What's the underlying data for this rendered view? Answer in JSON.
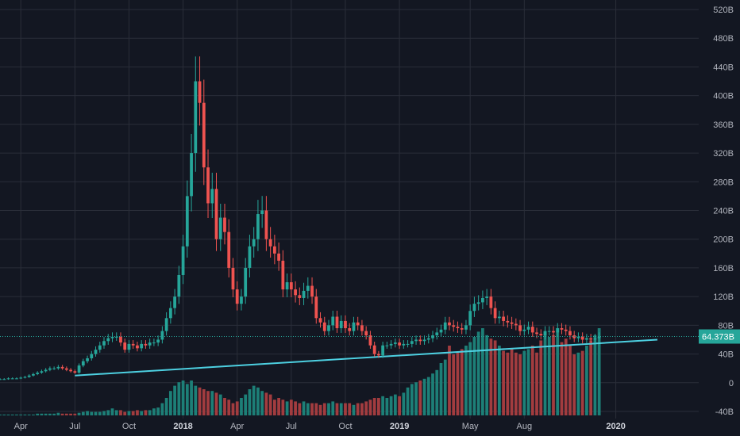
{
  "chart_data": {
    "type": "candlestick",
    "title": "",
    "xlabel": "",
    "ylabel": "",
    "y_unit": "B",
    "ylim": [
      -40,
      520
    ],
    "y_ticks": [
      "520B",
      "480B",
      "440B",
      "400B",
      "360B",
      "320B",
      "280B",
      "240B",
      "200B",
      "160B",
      "120B",
      "80B",
      "40B",
      "0",
      "-40B"
    ],
    "y_tick_values": [
      520,
      480,
      440,
      400,
      360,
      320,
      280,
      240,
      200,
      160,
      120,
      80,
      40,
      0,
      -40
    ],
    "x_ticks": [
      {
        "label": "Apr",
        "week": 5,
        "bold": false
      },
      {
        "label": "Jul",
        "week": 18,
        "bold": false
      },
      {
        "label": "Oct",
        "week": 31,
        "bold": false
      },
      {
        "label": "2018",
        "week": 44,
        "bold": true
      },
      {
        "label": "Apr",
        "week": 57,
        "bold": false
      },
      {
        "label": "Jul",
        "week": 70,
        "bold": false
      },
      {
        "label": "Oct",
        "week": 83,
        "bold": false
      },
      {
        "label": "2019",
        "week": 96,
        "bold": true
      },
      {
        "label": "May",
        "week": 113,
        "bold": false
      },
      {
        "label": "Aug",
        "week": 126,
        "bold": false
      },
      {
        "label": "2020",
        "week": 148,
        "bold": true
      }
    ],
    "x_range_weeks": [
      0,
      158
    ],
    "current_value": 64.373,
    "current_value_label": "64.373B",
    "grid": true,
    "trendline": {
      "start_week": 18,
      "start_value": 10,
      "end_week": 158,
      "end_value": 60
    },
    "colors": {
      "background": "#131722",
      "up": "#26a69a",
      "down": "#ef5350",
      "trendline": "#4dd0e1",
      "price_line": "#26a69a",
      "volume_up": "#1d7f77",
      "volume_down": "#a23c3f"
    },
    "close_series": [
      5,
      5,
      6,
      6,
      6,
      7,
      8,
      10,
      12,
      14,
      16,
      18,
      20,
      20,
      22,
      20,
      18,
      16,
      14,
      24,
      30,
      34,
      40,
      46,
      52,
      58,
      62,
      64,
      64,
      56,
      46,
      54,
      52,
      48,
      54,
      52,
      56,
      56,
      60,
      72,
      90,
      104,
      120,
      150,
      190,
      260,
      320,
      420,
      390,
      300,
      250,
      270,
      200,
      230,
      210,
      160,
      130,
      110,
      120,
      160,
      190,
      200,
      235,
      240,
      200,
      190,
      180,
      170,
      130,
      140,
      130,
      122,
      118,
      128,
      135,
      120,
      90,
      84,
      72,
      80,
      92,
      76,
      86,
      76,
      72,
      84,
      80,
      72,
      66,
      52,
      40,
      38,
      52,
      52,
      54,
      56,
      52,
      54,
      54,
      58,
      60,
      58,
      60,
      62,
      66,
      70,
      74,
      84,
      80,
      78,
      76,
      74,
      80,
      100,
      110,
      112,
      118,
      120,
      104,
      90,
      92,
      86,
      84,
      82,
      80,
      72,
      74,
      78,
      70,
      68,
      66,
      72,
      72,
      70,
      76,
      74,
      72,
      66,
      62,
      64,
      60,
      62,
      60,
      62,
      64
    ],
    "volume_series": [
      1,
      1,
      1,
      1,
      1,
      1,
      1,
      1,
      1,
      2,
      2,
      2,
      2,
      2,
      3,
      2,
      2,
      2,
      2,
      3,
      4,
      5,
      4,
      4,
      4,
      5,
      6,
      8,
      6,
      6,
      4,
      5,
      5,
      6,
      5,
      6,
      6,
      8,
      9,
      14,
      20,
      28,
      34,
      38,
      40,
      36,
      40,
      34,
      32,
      30,
      28,
      28,
      26,
      24,
      20,
      18,
      14,
      16,
      20,
      24,
      30,
      34,
      32,
      28,
      26,
      24,
      18,
      20,
      18,
      16,
      18,
      16,
      14,
      16,
      14,
      14,
      14,
      12,
      14,
      14,
      16,
      14,
      14,
      14,
      14,
      12,
      14,
      14,
      16,
      18,
      20,
      20,
      22,
      20,
      22,
      24,
      22,
      26,
      32,
      36,
      38,
      40,
      42,
      44,
      48,
      52,
      60,
      64,
      80,
      70,
      72,
      76,
      80,
      84,
      90,
      96,
      100,
      92,
      88,
      86,
      80,
      74,
      72,
      76,
      72,
      70,
      74,
      76,
      80,
      72,
      86,
      96,
      90,
      92,
      100,
      84,
      88,
      80,
      70,
      72,
      74,
      80,
      86,
      92,
      100
    ],
    "volume_max_value": 100
  }
}
